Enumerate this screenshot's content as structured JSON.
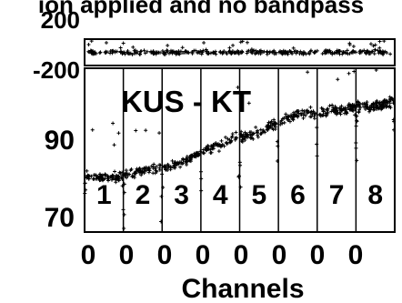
{
  "chart_data": [
    {
      "type": "scatter",
      "panel": "top",
      "title": "ion applied and no bandpass",
      "ylim": [
        -200,
        200
      ],
      "y_tick_labels": [
        "200",
        "-200"
      ],
      "series": [
        {
          "name": "",
          "note": "dense noise band near 0 with sparse outliers",
          "x": [
            0,
            1200
          ],
          "y": [
            0,
            0
          ]
        }
      ]
    },
    {
      "type": "scatter",
      "panel": "bottom",
      "annotation": "KUS - KT",
      "xlabel": "Channels",
      "x_tick_labels": [
        "0",
        "0",
        "0",
        "0",
        "0",
        "0",
        "0",
        "0"
      ],
      "y_tick_labels": [
        "90",
        "70"
      ],
      "ylim": [
        67,
        110
      ],
      "band_labels": [
        "1",
        "2",
        "3",
        "4",
        "5",
        "6",
        "7",
        "8"
      ],
      "series": [
        {
          "name": "",
          "x": [
            0,
            75,
            150,
            225,
            300,
            375,
            450,
            525,
            600,
            675,
            750,
            825,
            900,
            975,
            1050,
            1125,
            1200
          ],
          "y": [
            82,
            81,
            82,
            83,
            84,
            85,
            88,
            90,
            92,
            93,
            96,
            98,
            98,
            99,
            100,
            100,
            101
          ]
        }
      ]
    }
  ]
}
